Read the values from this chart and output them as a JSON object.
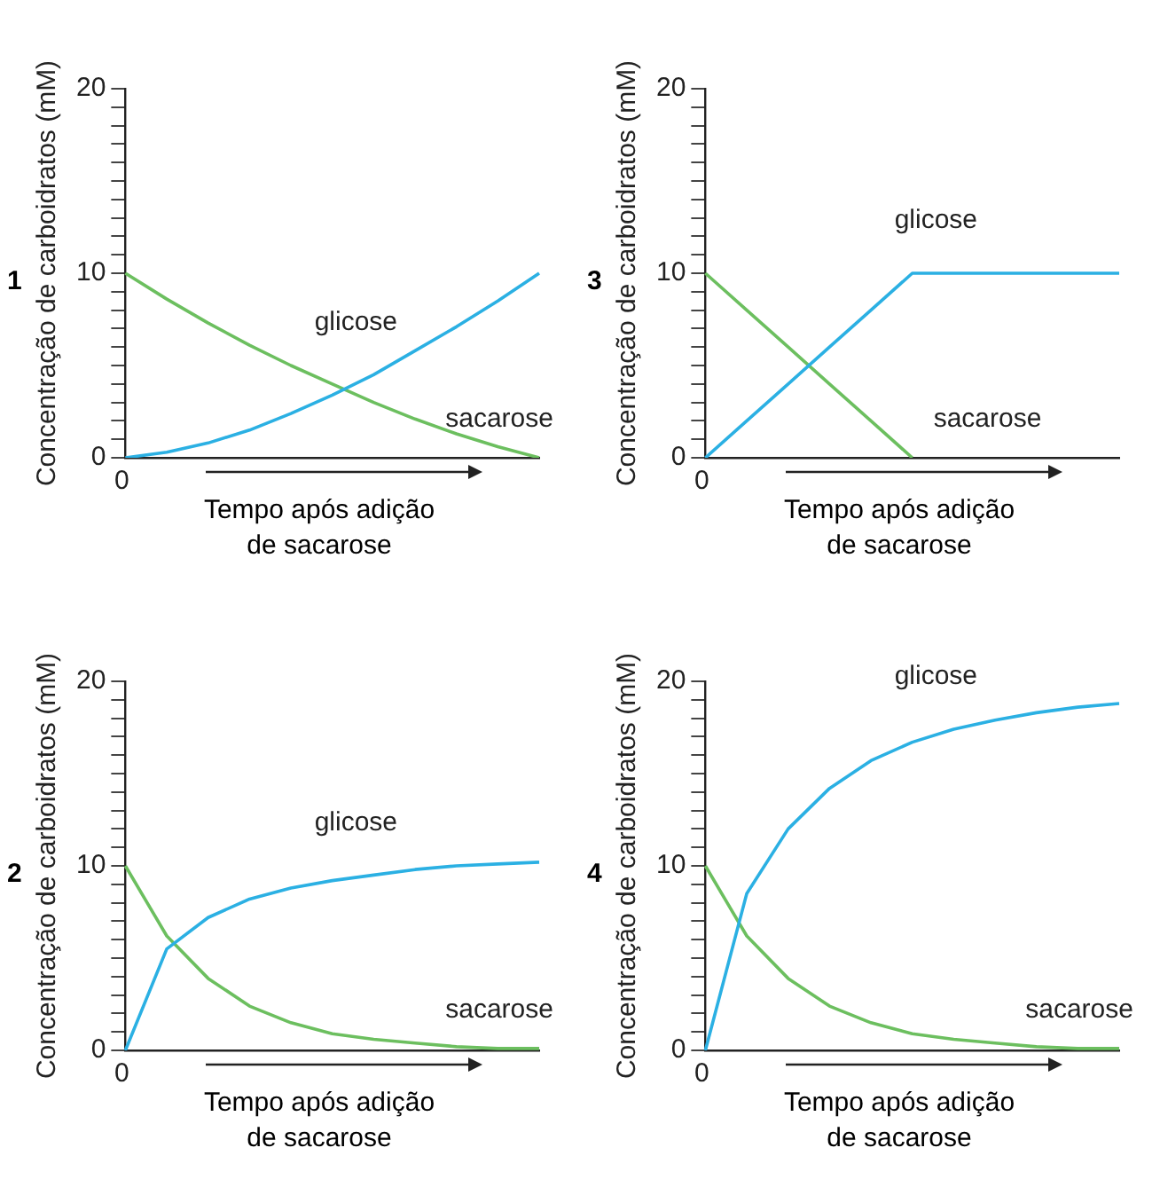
{
  "chart_data": [
    {
      "type": "line",
      "title": "1",
      "ylabel": "Concentração de carboidratos (mM)",
      "xlabel": "Tempo após adição de sacarose",
      "categories": [
        null,
        null,
        null,
        null,
        null,
        null,
        null,
        null,
        null,
        null,
        null
      ],
      "ylim": [
        0,
        20
      ],
      "yticks": [
        0,
        {
          "value": 1,
          "label": null
        },
        {
          "value": 2,
          "label": null
        },
        {
          "value": 3,
          "label": null
        },
        {
          "value": 4,
          "label": null
        },
        {
          "value": 5,
          "label": null
        },
        {
          "value": 6,
          "label": null
        },
        {
          "value": 7,
          "label": null
        },
        {
          "value": 8,
          "label": null
        },
        {
          "value": 9,
          "label": null
        },
        10,
        {
          "value": 11,
          "label": null
        },
        {
          "value": 12,
          "label": null
        },
        {
          "value": 13,
          "label": null
        },
        {
          "value": 14,
          "label": null
        },
        {
          "value": 15,
          "label": null
        },
        {
          "value": 16,
          "label": null
        },
        {
          "value": 17,
          "label": null
        },
        {
          "value": 18,
          "label": null
        },
        {
          "value": 19,
          "label": null
        },
        20
      ],
      "tick_labels": "y",
      "grid": false,
      "legend": false,
      "marker": "none",
      "annotations": [
        "0"
      ],
      "series": [
        {
          "name": "glicose",
          "color": "#2bb0e3",
          "values": [
            0,
            0.3,
            0.8,
            1.5,
            2.4,
            3.4,
            4.5,
            5.8,
            7.1,
            8.5,
            10
          ]
        },
        {
          "name": "sacarose",
          "color": "#6cbf5f",
          "values": [
            10,
            8.6,
            7.3,
            6.1,
            5,
            4,
            3,
            2.1,
            1.3,
            0.6,
            0
          ]
        }
      ]
    },
    {
      "type": "line",
      "title": "3",
      "ylabel": "Concentração de carboidratos (mM)",
      "xlabel": "Tempo após adição de sacarose",
      "categories": [
        null,
        null,
        null,
        null,
        null,
        null,
        null,
        null,
        null,
        null,
        null
      ],
      "ylim": [
        0,
        20
      ],
      "yticks": [
        0,
        {
          "value": 1,
          "label": null
        },
        {
          "value": 2,
          "label": null
        },
        {
          "value": 3,
          "label": null
        },
        {
          "value": 4,
          "label": null
        },
        {
          "value": 5,
          "label": null
        },
        {
          "value": 6,
          "label": null
        },
        {
          "value": 7,
          "label": null
        },
        {
          "value": 8,
          "label": null
        },
        {
          "value": 9,
          "label": null
        },
        10,
        {
          "value": 11,
          "label": null
        },
        {
          "value": 12,
          "label": null
        },
        {
          "value": 13,
          "label": null
        },
        {
          "value": 14,
          "label": null
        },
        {
          "value": 15,
          "label": null
        },
        {
          "value": 16,
          "label": null
        },
        {
          "value": 17,
          "label": null
        },
        {
          "value": 18,
          "label": null
        },
        {
          "value": 19,
          "label": null
        },
        20
      ],
      "tick_labels": "y",
      "grid": false,
      "legend": false,
      "marker": "none",
      "annotations": [
        "0"
      ],
      "series": [
        {
          "name": "glicose",
          "color": "#2bb0e3",
          "values": [
            0,
            2,
            4,
            6,
            8,
            10,
            10,
            10,
            10,
            10,
            10
          ]
        },
        {
          "name": "sacarose",
          "color": "#6cbf5f",
          "values": [
            10,
            8,
            6,
            4,
            2,
            0,
            null,
            null,
            null,
            null,
            null
          ]
        }
      ]
    },
    {
      "type": "line",
      "title": "2",
      "ylabel": "Concentração de carboidratos (mM)",
      "xlabel": "Tempo após adição de sacarose",
      "categories": [
        null,
        null,
        null,
        null,
        null,
        null,
        null,
        null,
        null,
        null,
        null
      ],
      "ylim": [
        0,
        20
      ],
      "yticks": [
        0,
        {
          "value": 1,
          "label": null
        },
        {
          "value": 2,
          "label": null
        },
        {
          "value": 3,
          "label": null
        },
        {
          "value": 4,
          "label": null
        },
        {
          "value": 5,
          "label": null
        },
        {
          "value": 6,
          "label": null
        },
        {
          "value": 7,
          "label": null
        },
        {
          "value": 8,
          "label": null
        },
        {
          "value": 9,
          "label": null
        },
        10,
        {
          "value": 11,
          "label": null
        },
        {
          "value": 12,
          "label": null
        },
        {
          "value": 13,
          "label": null
        },
        {
          "value": 14,
          "label": null
        },
        {
          "value": 15,
          "label": null
        },
        {
          "value": 16,
          "label": null
        },
        {
          "value": 17,
          "label": null
        },
        {
          "value": 18,
          "label": null
        },
        {
          "value": 19,
          "label": null
        },
        20
      ],
      "tick_labels": "y",
      "grid": false,
      "legend": false,
      "marker": "none",
      "annotations": [
        "0"
      ],
      "series": [
        {
          "name": "glicose",
          "color": "#2bb0e3",
          "values": [
            0,
            5.5,
            7.2,
            8.2,
            8.8,
            9.2,
            9.5,
            9.8,
            10,
            10.1,
            10.2
          ]
        },
        {
          "name": "sacarose",
          "color": "#6cbf5f",
          "values": [
            10,
            6.2,
            3.9,
            2.4,
            1.5,
            0.9,
            0.6,
            0.4,
            0.2,
            0.1,
            0.1
          ]
        }
      ]
    },
    {
      "type": "line",
      "title": "4",
      "ylabel": "Concentração de carboidratos (mM)",
      "xlabel": "Tempo após adição de sacarose",
      "categories": [
        null,
        null,
        null,
        null,
        null,
        null,
        null,
        null,
        null,
        null,
        null
      ],
      "ylim": [
        0,
        20
      ],
      "yticks": [
        0,
        {
          "value": 1,
          "label": null
        },
        {
          "value": 2,
          "label": null
        },
        {
          "value": 3,
          "label": null
        },
        {
          "value": 4,
          "label": null
        },
        {
          "value": 5,
          "label": null
        },
        {
          "value": 6,
          "label": null
        },
        {
          "value": 7,
          "label": null
        },
        {
          "value": 8,
          "label": null
        },
        {
          "value": 9,
          "label": null
        },
        10,
        {
          "value": 11,
          "label": null
        },
        {
          "value": 12,
          "label": null
        },
        {
          "value": 13,
          "label": null
        },
        {
          "value": 14,
          "label": null
        },
        {
          "value": 15,
          "label": null
        },
        {
          "value": 16,
          "label": null
        },
        {
          "value": 17,
          "label": null
        },
        {
          "value": 18,
          "label": null
        },
        {
          "value": 19,
          "label": null
        },
        20
      ],
      "tick_labels": "y",
      "grid": false,
      "legend": false,
      "marker": "none",
      "annotations": [
        "0"
      ],
      "series": [
        {
          "name": "glicose",
          "color": "#2bb0e3",
          "values": [
            0,
            8.5,
            12,
            14.2,
            15.7,
            16.7,
            17.4,
            17.9,
            18.3,
            18.6,
            18.8
          ]
        },
        {
          "name": "sacarose",
          "color": "#6cbf5f",
          "values": [
            10,
            6.2,
            3.9,
            2.4,
            1.5,
            0.9,
            0.6,
            0.4,
            0.2,
            0.1,
            0.1
          ]
        }
      ]
    }
  ]
}
